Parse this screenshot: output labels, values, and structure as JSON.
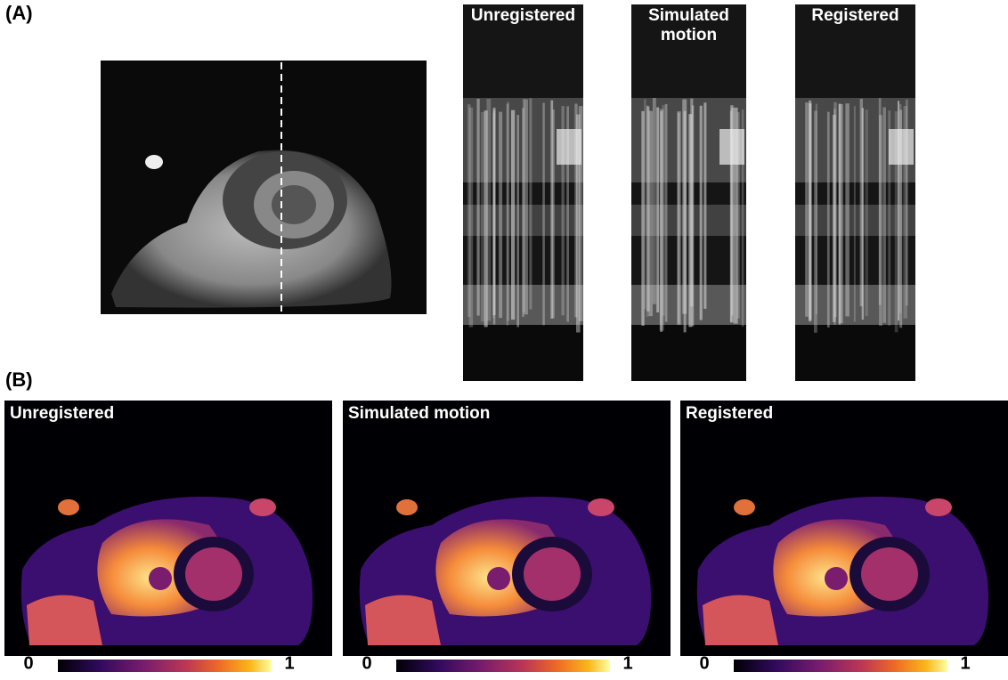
{
  "panel_a": {
    "label": "(A)",
    "strips": [
      {
        "title_lines": [
          "Unregistered"
        ]
      },
      {
        "title_lines": [
          "Simulated",
          "motion"
        ]
      },
      {
        "title_lines": [
          "Registered"
        ]
      }
    ]
  },
  "panel_b": {
    "label": "(B)",
    "maps": [
      {
        "title": "Unregistered",
        "colorbar_min": "0",
        "colorbar_max": "1"
      },
      {
        "title": "Simulated motion",
        "colorbar_min": "0",
        "colorbar_max": "1"
      },
      {
        "title": "Registered",
        "colorbar_min": "0",
        "colorbar_max": "1"
      }
    ]
  }
}
